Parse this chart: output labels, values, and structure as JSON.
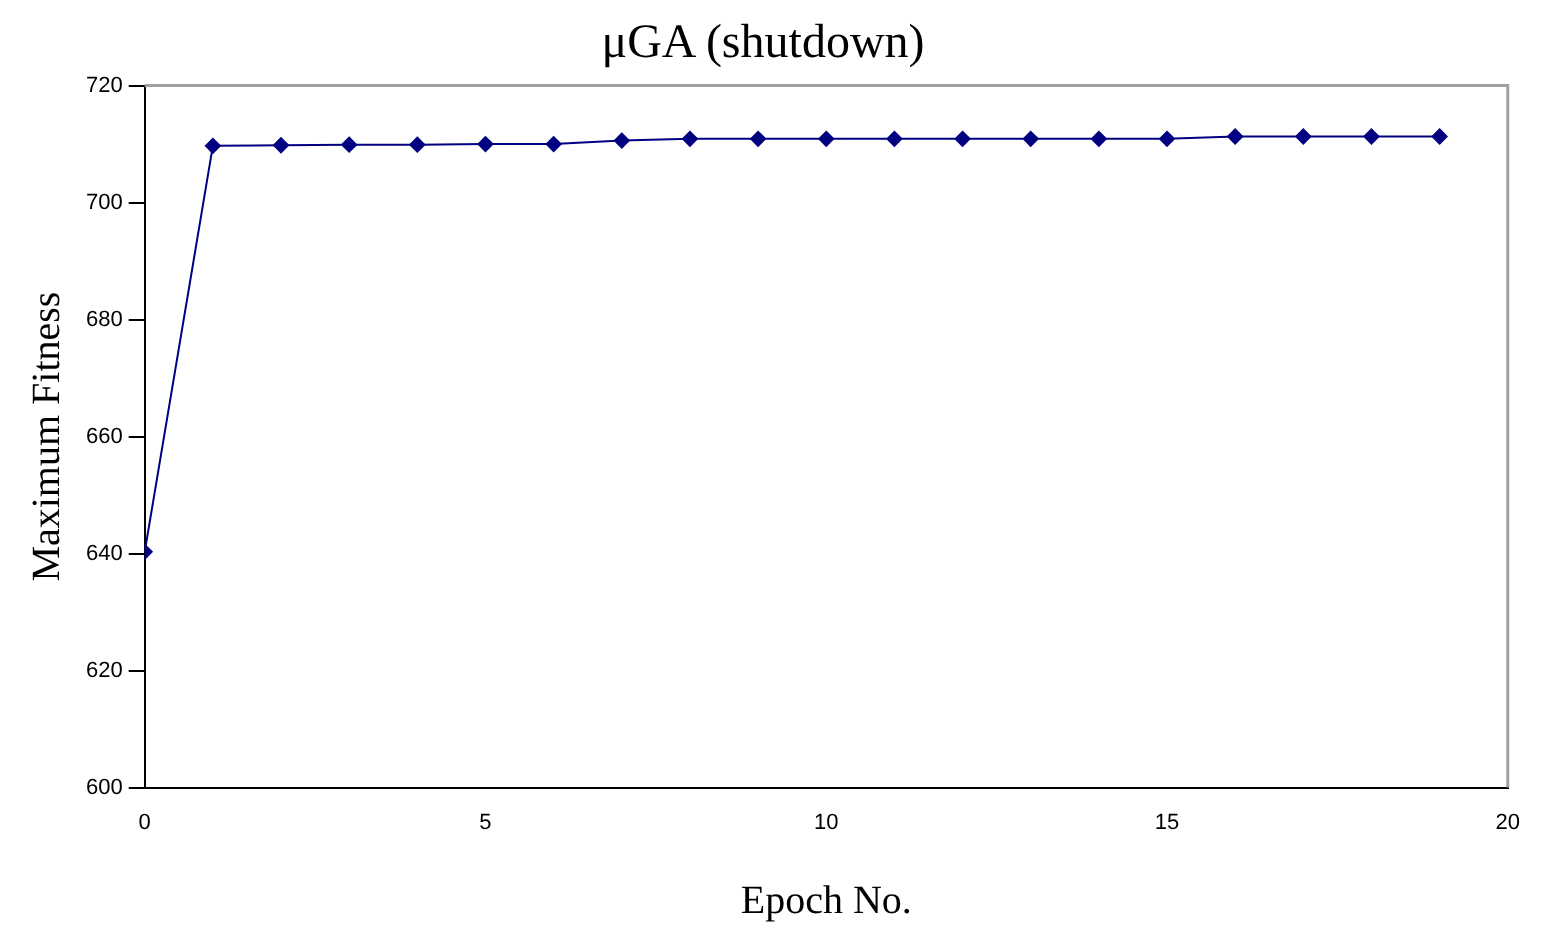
{
  "chart_data": {
    "type": "line",
    "title": "μGA (shutdown)",
    "xlabel": "Epoch No.",
    "ylabel": "Maximum Fitness",
    "x": [
      0,
      1,
      2,
      3,
      4,
      5,
      6,
      7,
      8,
      9,
      10,
      11,
      12,
      13,
      14,
      15,
      16,
      17,
      18,
      19
    ],
    "series": [
      {
        "color": "#000080",
        "values": [
          640.3,
          709.7,
          709.8,
          709.9,
          709.9,
          710.0,
          710.0,
          710.6,
          710.9,
          710.9,
          710.9,
          710.9,
          710.9,
          710.9,
          710.9,
          710.9,
          711.3,
          711.3,
          711.3,
          711.3
        ]
      }
    ],
    "xlim": [
      0,
      20
    ],
    "xticks": [
      0,
      5,
      10,
      15,
      20
    ],
    "ylim": [
      600,
      720
    ],
    "yticks": [
      600,
      620,
      640,
      660,
      680,
      700,
      720
    ],
    "grid": false,
    "legend": false,
    "marker": "diamond",
    "line_style": "solid"
  }
}
